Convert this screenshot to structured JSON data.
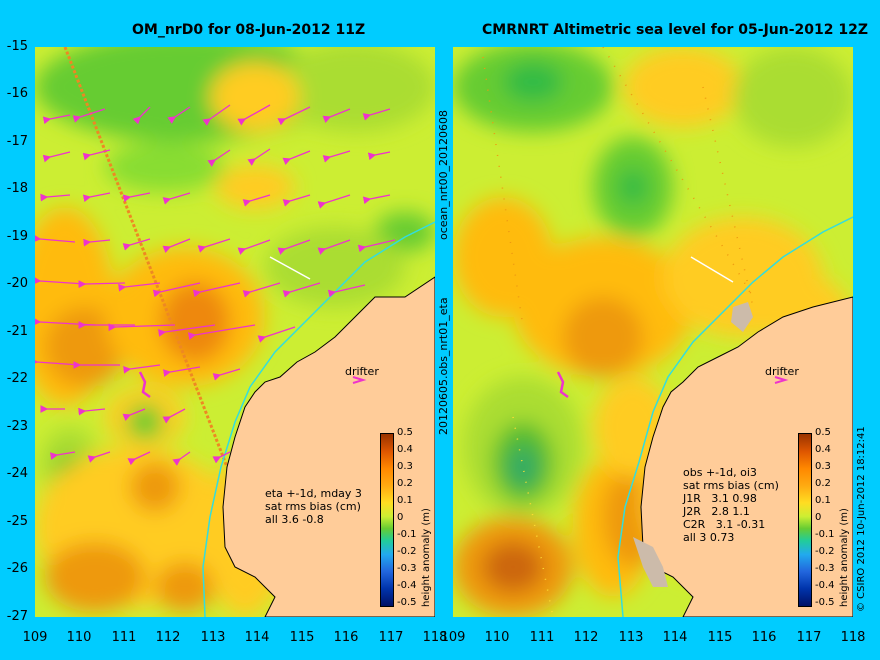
{
  "left_panel": {
    "title": "OM_nrD0 for 08-Jun-2012 11Z",
    "stats_lines": [
      "eta +-1d, mday 3",
      "sat rms bias (cm)",
      "all 3.6 -0.8"
    ],
    "drifter_label": "drifter"
  },
  "right_panel": {
    "title": "CMRNRT Altimetric sea level  for 05-Jun-2012 12Z",
    "stats_lines": [
      "obs +-1d, oi3",
      "sat rms bias (cm)",
      "J1R   3.1 0.98",
      "J2R   2.8 1.1",
      "C2R   3.1 -0.31",
      "all 3 0.73"
    ],
    "drifter_label": "drifter"
  },
  "middle_vertical_text": [
    "ocean_nrt00_20120608",
    "20120605.obs_nrt01_eta"
  ],
  "right_edge_text": "© CSIRO 2012   10-Jun-2012 18:12:41",
  "colorbar": {
    "ticks": [
      "0.5",
      "0.4",
      "0.3",
      "0.2",
      "0.1",
      "0",
      "-0.1",
      "-0.2",
      "-0.3",
      "-0.4",
      "-0.5"
    ],
    "label": "height anomaly (m)"
  },
  "y_axis_labels": [
    "-15",
    "-16",
    "-17",
    "-18",
    "-19",
    "-20",
    "-21",
    "-22",
    "-23",
    "-24",
    "-25",
    "-26",
    "-27"
  ],
  "x_axis_labels_left": [
    "109",
    "110",
    "111",
    "112",
    "113",
    "114",
    "115",
    "116",
    "117",
    "118"
  ],
  "x_axis_labels_right": [
    "109",
    "110",
    "111",
    "112",
    "113",
    "114",
    "115",
    "116",
    "117",
    "118"
  ],
  "colors": {
    "background": "#00ccff",
    "land": "#ffcc99",
    "sea_base": "#ccee33",
    "arrows": "#ee33cc",
    "coast_current": "#33dddd"
  }
}
